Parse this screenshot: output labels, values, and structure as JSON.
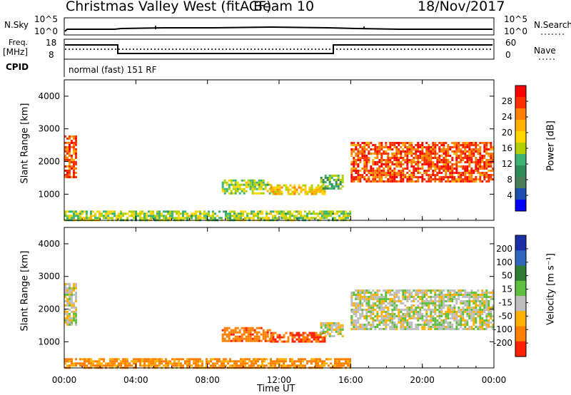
{
  "header": {
    "station": "Christmas Valley West (fitACF)",
    "beam": "Beam 10",
    "date": "18/Nov/2017"
  },
  "panels": {
    "nsky": {
      "label": "N.Sky",
      "ticks": [
        "10^5",
        "10^0"
      ],
      "right_label": "N.Search",
      "right_ticks": [
        "10^5",
        "10^0"
      ]
    },
    "freq": {
      "label_line1": "Freq.",
      "label_line2": "[MHz]",
      "ticks": [
        "18",
        "8"
      ],
      "right_label": "Nave",
      "right_ticks": [
        "60",
        "0"
      ]
    },
    "cpid": {
      "label": "CPID",
      "mode": "normal (fast) 151 RF"
    }
  },
  "axes": {
    "ylabel": "Slant Range [km]",
    "xlabel": "Time UT",
    "x_ticks": [
      "00:00",
      "04:00",
      "08:00",
      "12:00",
      "16:00",
      "20:00",
      "00:00"
    ],
    "y_ticks": [
      "4000",
      "3000",
      "2000",
      "1000"
    ]
  },
  "colorbars": {
    "power": {
      "label": "Power [dB]",
      "ticks": [
        "28",
        "24",
        "20",
        "16",
        "12",
        "8",
        "4"
      ],
      "colors": [
        "#ff0000",
        "#ff3000",
        "#ff7f00",
        "#ffb000",
        "#ffd700",
        "#b0d000",
        "#3cb371",
        "#2e8b57",
        "#4a7c59",
        "#1e4fb0",
        "#0000ff"
      ]
    },
    "velocity": {
      "label": "Velocity [m s⁻¹]",
      "ticks": [
        "200",
        "100",
        "50",
        "15",
        "-15",
        "-50",
        "-100",
        "-200"
      ],
      "colors": [
        "#1a2ea8",
        "#2f66c0",
        "#2e7d32",
        "#5fbf3f",
        "#bdbdbd",
        "#ffb000",
        "#ff7f00",
        "#ff2000"
      ]
    }
  },
  "chart_data": [
    {
      "type": "heatmap",
      "title": "Power",
      "xlabel": "Time UT",
      "ylabel": "Slant Range [km]",
      "xlim": [
        0,
        24
      ],
      "ylim": [
        200,
        4500
      ],
      "colorbar": {
        "label": "Power [dB]",
        "range": [
          0,
          32
        ]
      },
      "regions": [
        {
          "t": [
            0.0,
            0.6
          ],
          "r": [
            1500,
            2800
          ],
          "value": 28
        },
        {
          "t": [
            8.8,
            11.5
          ],
          "r": [
            1050,
            1450
          ],
          "value": 16
        },
        {
          "t": [
            11.5,
            14.5
          ],
          "r": [
            1000,
            1300
          ],
          "value": 20
        },
        {
          "t": [
            14.3,
            15.5
          ],
          "r": [
            1200,
            1600
          ],
          "value": 12
        },
        {
          "t": [
            16.0,
            24.0
          ],
          "r": [
            1400,
            2600
          ],
          "value": 28
        },
        {
          "t": [
            0.0,
            16.0
          ],
          "r": [
            200,
            500
          ],
          "value": 16
        }
      ]
    },
    {
      "type": "heatmap",
      "title": "Velocity",
      "xlabel": "Time UT",
      "ylabel": "Slant Range [km]",
      "xlim": [
        0,
        24
      ],
      "ylim": [
        200,
        4500
      ],
      "colorbar": {
        "label": "Velocity [m s⁻¹]",
        "range": [
          -250,
          250
        ]
      },
      "regions": [
        {
          "t": [
            0.0,
            0.6
          ],
          "r": [
            1500,
            2800
          ],
          "value": 0
        },
        {
          "t": [
            8.8,
            11.5
          ],
          "r": [
            1050,
            1450
          ],
          "value": -80
        },
        {
          "t": [
            11.5,
            14.5
          ],
          "r": [
            1000,
            1300
          ],
          "value": -100
        },
        {
          "t": [
            14.3,
            15.5
          ],
          "r": [
            1200,
            1600
          ],
          "value": 0
        },
        {
          "t": [
            16.0,
            24.0
          ],
          "r": [
            1400,
            2600
          ],
          "value": 0
        },
        {
          "t": [
            0.0,
            16.0
          ],
          "r": [
            200,
            500
          ],
          "value": -60
        }
      ]
    }
  ]
}
